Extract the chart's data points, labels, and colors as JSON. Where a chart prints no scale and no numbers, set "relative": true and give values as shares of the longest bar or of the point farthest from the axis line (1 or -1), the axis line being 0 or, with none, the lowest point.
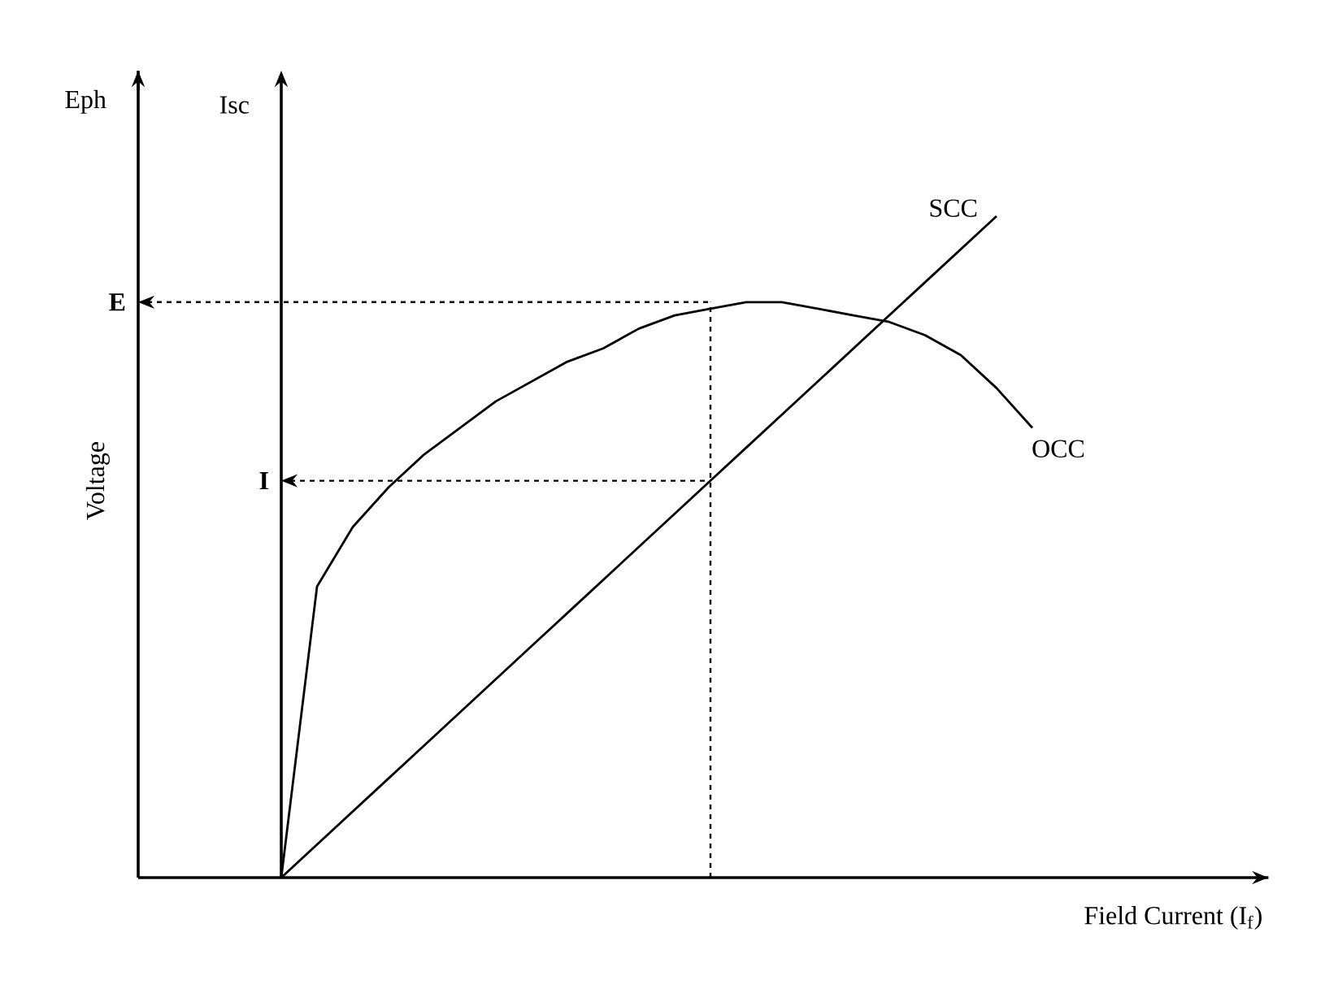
{
  "chart_data": {
    "type": "line",
    "relative": true,
    "marker": "none",
    "line_style": "solid",
    "xlabel": "Field Current (I$_{f}$)",
    "ylabel": "Voltage",
    "annotations": [
      "Eph",
      "Isc"
    ],
    "categories": [
      null,
      null,
      null,
      null,
      null,
      null,
      null,
      null,
      null,
      null,
      null,
      null,
      null,
      null,
      null,
      null,
      null,
      null,
      null,
      null,
      null,
      null,
      null,
      null,
      null,
      null,
      null,
      null,
      null,
      null,
      null,
      null
    ],
    "series": [
      {
        "name": "OCC",
        "color": "#000000",
        "values": [
          null,
          null,
          null,
          null,
          0,
          0.44,
          0.53,
          0.59,
          0.64,
          0.68,
          0.72,
          0.75,
          0.78,
          0.8,
          0.83,
          0.85,
          0.86,
          0.87,
          0.87,
          0.86,
          0.85,
          0.84,
          0.82,
          0.79,
          0.74,
          0.68,
          null,
          null,
          null,
          null,
          null,
          null
        ]
      },
      {
        "name": "SCC",
        "color": "#000000",
        "values": [
          null,
          null,
          null,
          null,
          0,
          0.05,
          0.1,
          0.15,
          0.2,
          0.25,
          0.3,
          0.35,
          0.4,
          0.45,
          0.5,
          0.55,
          0.6,
          0.65,
          0.7,
          0.75,
          0.8,
          0.85,
          0.9,
          0.95,
          1,
          null,
          null,
          null,
          null,
          null,
          null,
          null
        ]
      }
    ],
    "ref_lines": [
      {
        "axis": "y",
        "value": 0.87,
        "label": "E",
        "line_style": "dashed"
      },
      {
        "axis": "y",
        "value": 0.6,
        "label": "I",
        "line_style": "dashed"
      }
    ]
  }
}
